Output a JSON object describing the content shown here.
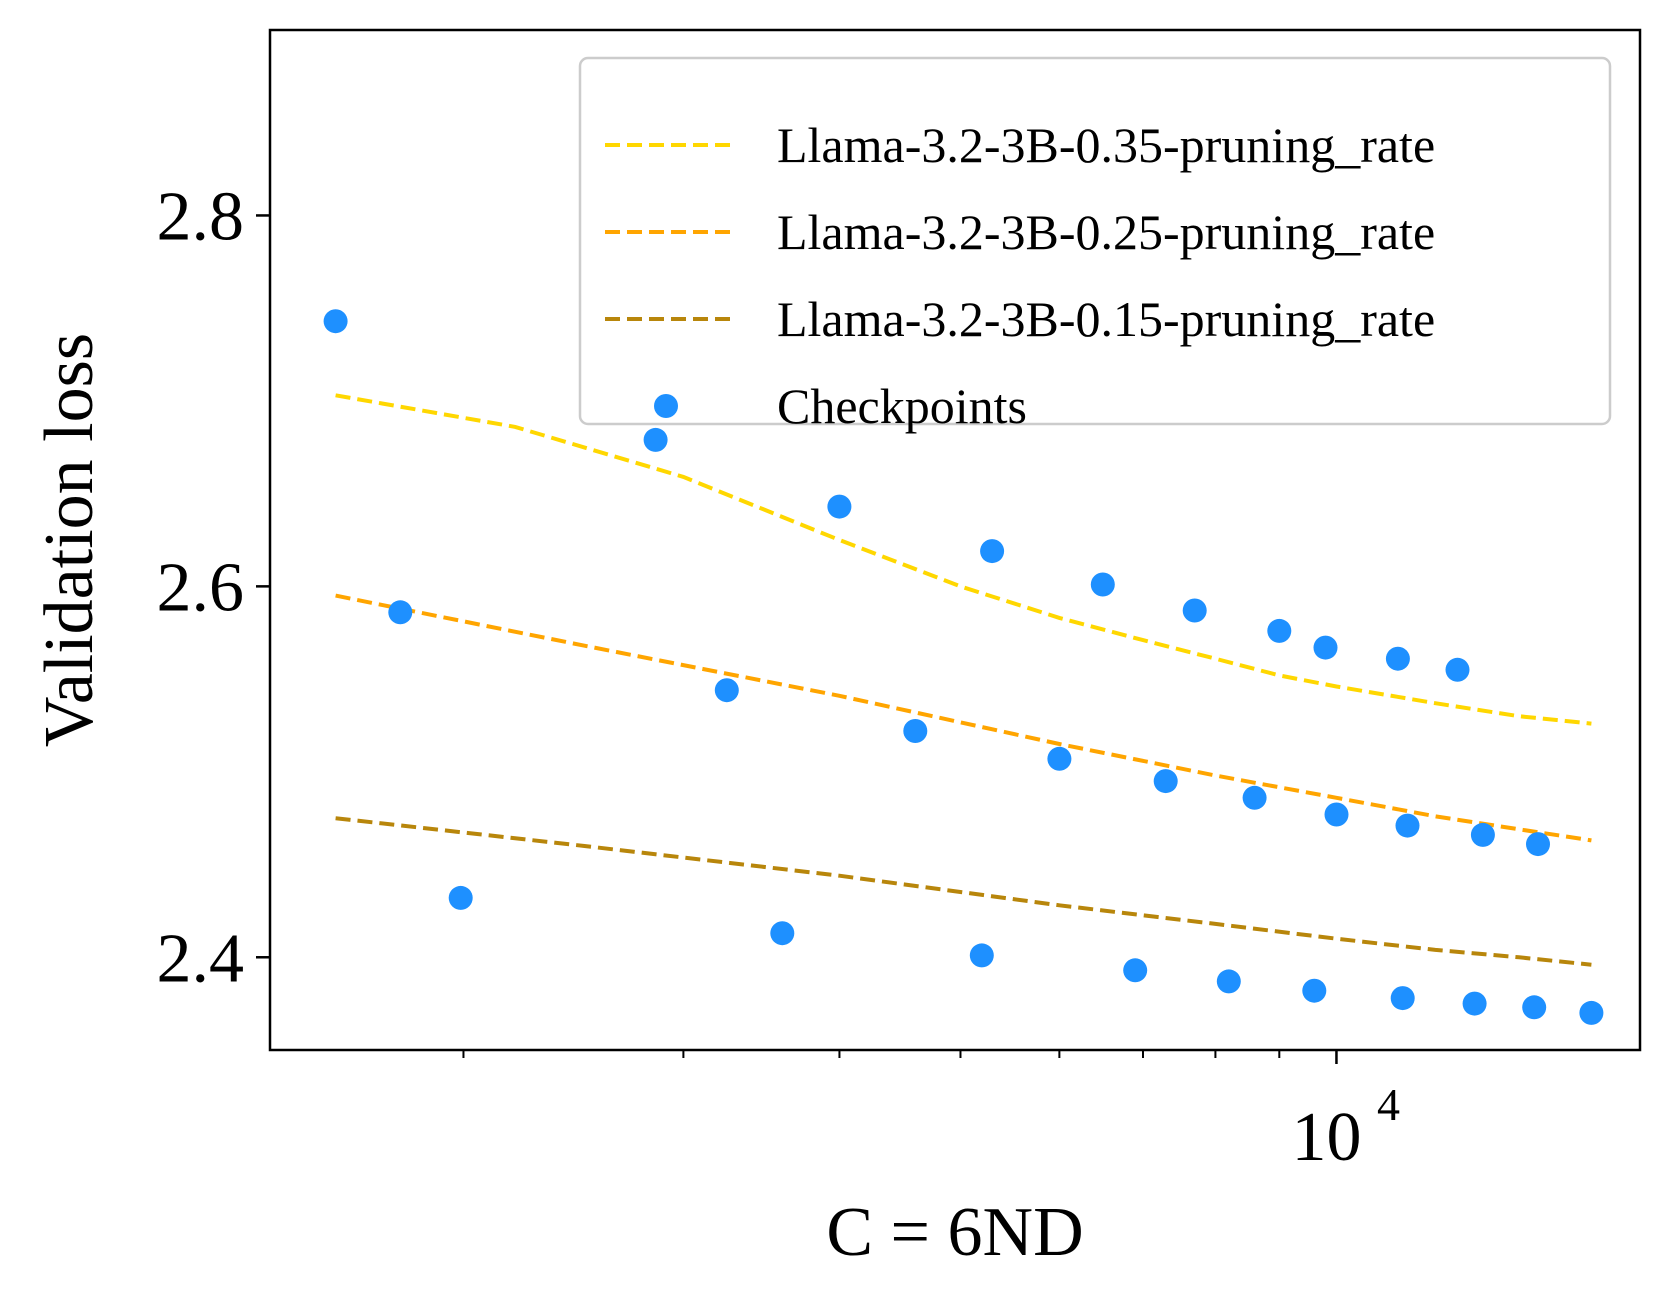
{
  "chart_data": {
    "type": "scatter",
    "title": "",
    "xlabel": "C = 6ND",
    "ylabel": "Validation loss",
    "xscale": "log",
    "xlim": [
      1400,
      17500
    ],
    "ylim": [
      2.35,
      2.9
    ],
    "yticks": [
      {
        "value": 2.4,
        "label": "2.4"
      },
      {
        "value": 2.6,
        "label": "2.6"
      },
      {
        "value": 2.8,
        "label": "2.8"
      }
    ],
    "xticks": [
      {
        "value": 10000,
        "base": "10",
        "exponent": "4"
      }
    ],
    "xminor_ticks": [
      2000,
      3000,
      4000,
      5000,
      6000,
      7000,
      8000,
      9000
    ],
    "legend_position": "top-right",
    "series": [
      {
        "name": "Llama-3.2-3B-0.35-pruning_rate",
        "kind": "fit",
        "style": "dashed",
        "color": "#FFD700",
        "x": [
          1580,
          2200,
          3000,
          4000,
          5000,
          6000,
          7000,
          8000,
          9000,
          10000,
          12000,
          14000,
          16000
        ],
        "y": [
          2.703,
          2.686,
          2.659,
          2.625,
          2.6,
          2.583,
          2.571,
          2.561,
          2.552,
          2.546,
          2.537,
          2.53,
          2.526
        ]
      },
      {
        "name": "Llama-3.2-3B-0.25-pruning_rate",
        "kind": "fit",
        "style": "dashed",
        "color": "#FFA500",
        "x": [
          1580,
          2500,
          4000,
          6000,
          8000,
          10000,
          12000,
          14000,
          16000
        ],
        "y": [
          2.595,
          2.568,
          2.541,
          2.515,
          2.498,
          2.486,
          2.476,
          2.469,
          2.463
        ]
      },
      {
        "name": "Llama-3.2-3B-0.15-pruning_rate",
        "kind": "fit",
        "style": "dashed",
        "color": "#B8860B",
        "x": [
          1580,
          2500,
          4000,
          6000,
          8000,
          10000,
          12000,
          14000,
          16000
        ],
        "y": [
          2.475,
          2.46,
          2.444,
          2.428,
          2.418,
          2.41,
          2.404,
          2.4,
          2.396
        ]
      },
      {
        "name": "Checkpoints",
        "kind": "points",
        "color": "#1E90FF",
        "points": [
          [
            1580,
            2.743
          ],
          [
            1780,
            2.586
          ],
          [
            1990,
            2.432
          ],
          [
            2850,
            2.679
          ],
          [
            3250,
            2.544
          ],
          [
            3600,
            2.413
          ],
          [
            4000,
            2.643
          ],
          [
            4600,
            2.522
          ],
          [
            5200,
            2.401
          ],
          [
            5300,
            2.619
          ],
          [
            6000,
            2.507
          ],
          [
            6500,
            2.601
          ],
          [
            6900,
            2.393
          ],
          [
            7300,
            2.495
          ],
          [
            7700,
            2.587
          ],
          [
            8200,
            2.387
          ],
          [
            8600,
            2.486
          ],
          [
            9000,
            2.576
          ],
          [
            9600,
            2.382
          ],
          [
            9800,
            2.567
          ],
          [
            10000,
            2.477
          ],
          [
            11200,
            2.561
          ],
          [
            11300,
            2.378
          ],
          [
            11400,
            2.471
          ],
          [
            12500,
            2.555
          ],
          [
            12900,
            2.375
          ],
          [
            13100,
            2.466
          ],
          [
            14400,
            2.373
          ],
          [
            14500,
            2.461
          ],
          [
            16000,
            2.37
          ]
        ]
      }
    ]
  }
}
